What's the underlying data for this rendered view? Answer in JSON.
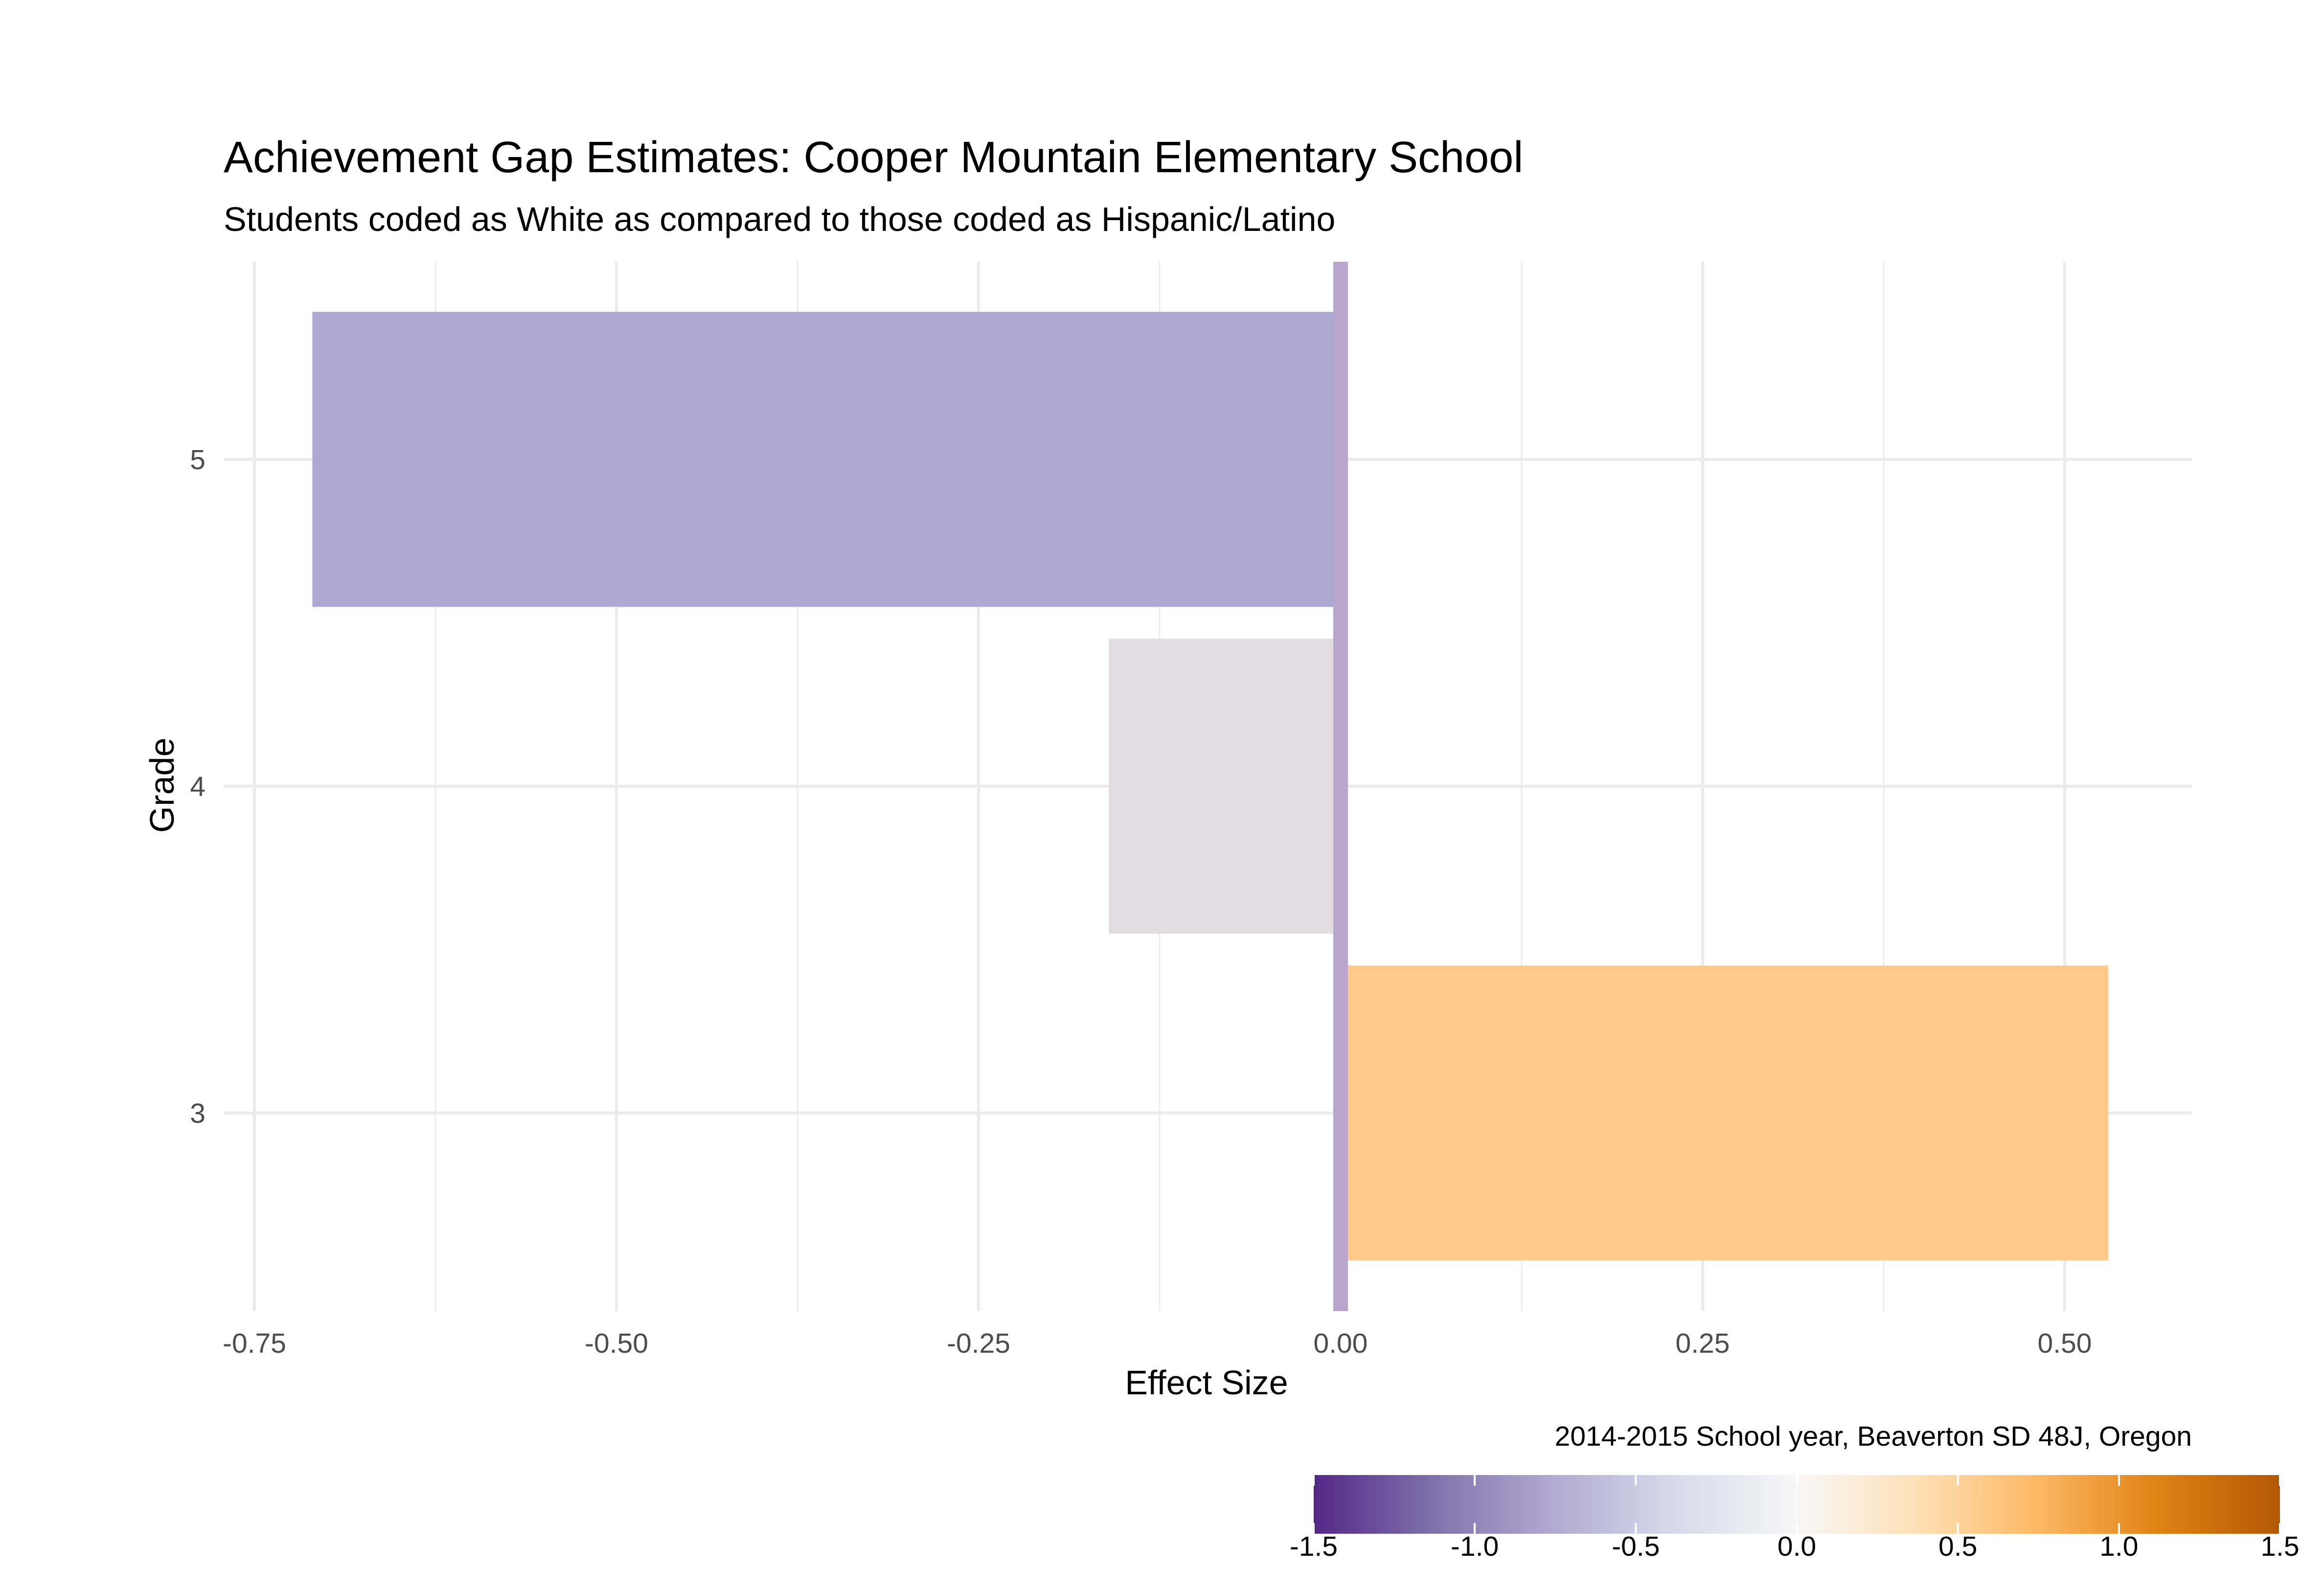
{
  "chart_data": {
    "type": "bar",
    "orientation": "horizontal",
    "title": "Achievement Gap Estimates: Cooper Mountain Elementary School",
    "subtitle": "Students coded as White as compared to those coded as Hispanic/Latino",
    "xlabel": "Effect Size",
    "ylabel": "Grade",
    "caption": "2014-2015 School year, Beaverton SD 48J, Oregon",
    "categories": [
      "3",
      "4",
      "5"
    ],
    "values": [
      0.53,
      -0.16,
      -0.71
    ],
    "xlim": [
      -0.75,
      0.55
    ],
    "x_ticks": [
      "-0.75",
      "-0.50",
      "-0.25",
      "0.00",
      "0.25",
      "0.50"
    ],
    "x_tick_values": [
      -0.75,
      -0.5,
      -0.25,
      0,
      0.25,
      0.5
    ],
    "reference_line": 0,
    "grid": true,
    "legend": {
      "position": "bottom-right",
      "type": "colorbar",
      "range": [
        -1.5,
        1.5
      ],
      "ticks": [
        "-1.5",
        "-1.0",
        "-0.5",
        "0.0",
        "0.5",
        "1.0",
        "1.5"
      ],
      "tick_values": [
        -1.5,
        -1.0,
        -0.5,
        0.0,
        0.5,
        1.0,
        1.5
      ]
    },
    "colors": {
      "palette": [
        "#542788",
        "#8073ac",
        "#b2abd2",
        "#d8daeb",
        "#f7f7f7",
        "#fee0b6",
        "#fdb863",
        "#e08214",
        "#b35806"
      ],
      "bars": [
        "#fec98a",
        "#e2dce1",
        "#aea7d1"
      ],
      "reference_line": "#b8a6cf",
      "grid": "#ebebeb"
    }
  }
}
